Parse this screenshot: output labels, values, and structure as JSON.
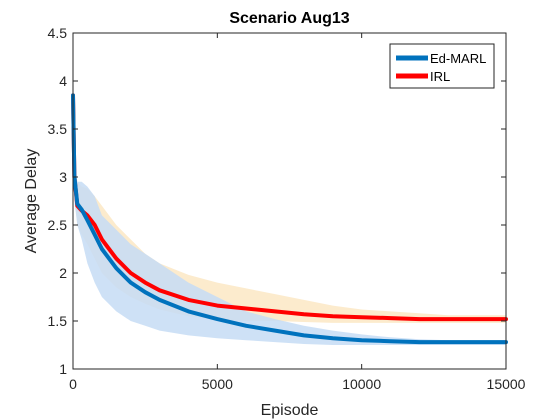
{
  "chart_data": {
    "type": "line",
    "title": "Scenario Aug13",
    "xlabel": "Episode",
    "ylabel": "Average Delay",
    "xlim": [
      0,
      15000
    ],
    "ylim": [
      1,
      4.5
    ],
    "xticks": [
      0,
      5000,
      10000,
      15000
    ],
    "yticks": [
      1,
      1.5,
      2,
      2.5,
      3,
      3.5,
      4,
      4.5
    ],
    "xtick_labels": [
      "0",
      "5000",
      "10000",
      "15000"
    ],
    "ytick_labels": [
      "1",
      "1.5",
      "2",
      "2.5",
      "3",
      "3.5",
      "4",
      "4.5"
    ],
    "grid": false,
    "legend_position": "top-right",
    "series": [
      {
        "name": "Ed-MARL",
        "color": "#0072BD",
        "band_color": "#C6DCF4",
        "x": [
          0,
          50,
          150,
          300,
          500,
          750,
          1000,
          1500,
          2000,
          2500,
          3000,
          4000,
          5000,
          6000,
          7000,
          8000,
          9000,
          10000,
          11000,
          12000,
          13000,
          14000,
          15000
        ],
        "y": [
          3.85,
          3.0,
          2.72,
          2.66,
          2.55,
          2.4,
          2.25,
          2.05,
          1.9,
          1.8,
          1.72,
          1.6,
          1.52,
          1.45,
          1.4,
          1.35,
          1.32,
          1.3,
          1.29,
          1.28,
          1.28,
          1.28,
          1.28
        ],
        "lower": [
          3.7,
          2.75,
          2.5,
          2.35,
          2.1,
          1.9,
          1.75,
          1.6,
          1.5,
          1.45,
          1.4,
          1.35,
          1.32,
          1.3,
          1.28,
          1.26,
          1.25,
          1.25,
          1.25,
          1.25,
          1.25,
          1.25,
          1.25
        ],
        "upper": [
          4.0,
          3.25,
          2.95,
          2.95,
          2.9,
          2.8,
          2.6,
          2.45,
          2.3,
          2.2,
          2.1,
          1.9,
          1.75,
          1.6,
          1.52,
          1.45,
          1.4,
          1.36,
          1.33,
          1.31,
          1.3,
          1.3,
          1.3
        ]
      },
      {
        "name": "IRL",
        "color": "#FF0000",
        "band_color": "#FCE7C4",
        "x": [
          0,
          50,
          150,
          300,
          500,
          750,
          1000,
          1500,
          2000,
          2500,
          3000,
          4000,
          5000,
          6000,
          7000,
          8000,
          9000,
          10000,
          11000,
          12000,
          13000,
          14000,
          15000
        ],
        "y": [
          3.85,
          3.0,
          2.7,
          2.65,
          2.6,
          2.5,
          2.35,
          2.15,
          2.0,
          1.9,
          1.82,
          1.72,
          1.66,
          1.63,
          1.6,
          1.57,
          1.55,
          1.54,
          1.53,
          1.52,
          1.52,
          1.52,
          1.52
        ],
        "lower": [
          3.6,
          2.8,
          2.5,
          2.4,
          2.3,
          2.15,
          2.0,
          1.85,
          1.75,
          1.68,
          1.62,
          1.55,
          1.52,
          1.5,
          1.5,
          1.49,
          1.48,
          1.48,
          1.48,
          1.48,
          1.48,
          1.48,
          1.48
        ],
        "upper": [
          4.15,
          3.2,
          2.95,
          2.9,
          2.88,
          2.8,
          2.7,
          2.5,
          2.35,
          2.2,
          2.1,
          1.98,
          1.9,
          1.84,
          1.78,
          1.72,
          1.66,
          1.62,
          1.6,
          1.58,
          1.56,
          1.56,
          1.56
        ]
      }
    ]
  }
}
